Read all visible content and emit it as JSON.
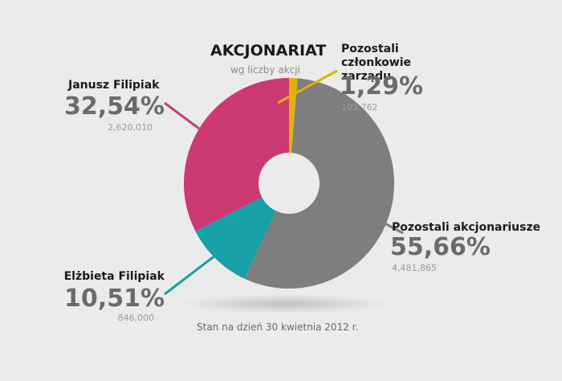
{
  "chart_data": {
    "type": "donut",
    "title": "AKCJONARIAT",
    "subtitle": "wg liczby akcji",
    "footnote": "Stan na dzień 30 kwietnia 2012 r.",
    "categories": [
      "Pozostali członkowie zarządu",
      "Pozostali akcjonariusze",
      "Elżbieta Filipiak",
      "Janusz Filipiak"
    ],
    "values": [
      1.29,
      55.66,
      10.51,
      32.54
    ],
    "value_labels": [
      "1,29%",
      "55,66%",
      "10,51%",
      "32,54%"
    ],
    "shares": [
      103762,
      4481865,
      846000,
      2620010
    ],
    "share_labels": [
      "103,762",
      "4,481,865",
      "846,000",
      "2,620,010"
    ],
    "colors": [
      "#e3b100",
      "#7e7e7e",
      "#17a0a8",
      "#cc3874"
    ]
  }
}
